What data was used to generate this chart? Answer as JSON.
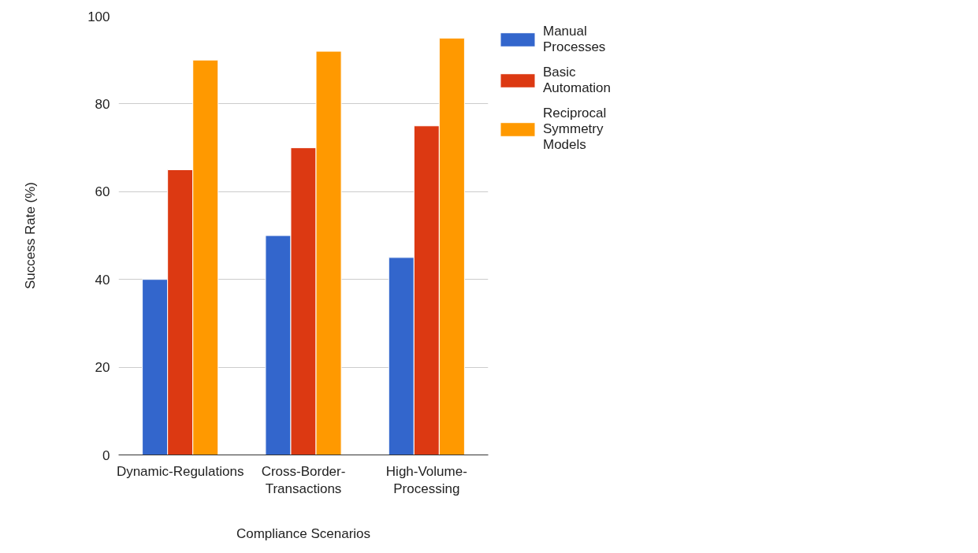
{
  "chart_data": {
    "type": "bar",
    "xlabel": "Compliance Scenarios",
    "ylabel": "Success Rate (%)",
    "categories": [
      "Dynamic-Regulations",
      "Cross-Border-Transactions",
      "High-Volume-Processing"
    ],
    "series": [
      {
        "name": "Manual Processes",
        "color": "#3366cc",
        "values": [
          40,
          50,
          45
        ]
      },
      {
        "name": "Basic Automation",
        "color": "#dc3912",
        "values": [
          65,
          70,
          75
        ]
      },
      {
        "name": "Reciprocal Symmetry Models",
        "color": "#ff9900",
        "values": [
          90,
          92,
          95
        ]
      }
    ],
    "ylim": [
      0,
      100
    ],
    "yticks": [
      0,
      20,
      40,
      60,
      80,
      100
    ],
    "grid": "y",
    "legend": "top right"
  }
}
